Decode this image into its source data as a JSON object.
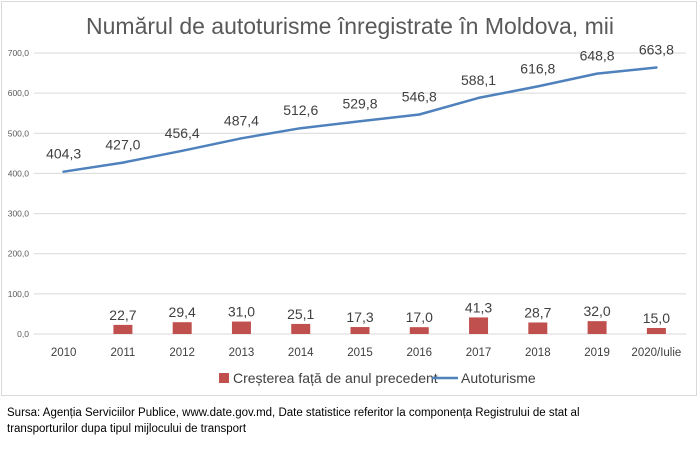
{
  "chart_data": {
    "type": "bar+line",
    "title": "Numărul de autoturisme înregistrate în Moldova, mii",
    "categories": [
      "2010",
      "2011",
      "2012",
      "2013",
      "2014",
      "2015",
      "2016",
      "2017",
      "2018",
      "2019",
      "2020/Iulie"
    ],
    "series": [
      {
        "name": "Creșterea față de anul precedent",
        "kind": "bar",
        "color": "#c0504d",
        "values": [
          null,
          22.7,
          29.4,
          31.0,
          25.1,
          17.3,
          17.0,
          41.3,
          28.7,
          32.0,
          15.0
        ],
        "labels": [
          "",
          "22,7",
          "29,4",
          "31,0",
          "25,1",
          "17,3",
          "17,0",
          "41,3",
          "28,7",
          "32,0",
          "15,0"
        ]
      },
      {
        "name": "Autoturisme",
        "kind": "line",
        "color": "#4f81bd",
        "values": [
          404.3,
          427.0,
          456.4,
          487.4,
          512.6,
          529.8,
          546.8,
          588.1,
          616.8,
          648.8,
          663.8
        ],
        "labels": [
          "404,3",
          "427,0",
          "456,4",
          "487,4",
          "512,6",
          "529,8",
          "546,8",
          "588,1",
          "616,8",
          "648,8",
          "663,8"
        ]
      }
    ],
    "ylim": [
      0,
      700
    ],
    "yticks": [
      0,
      100,
      200,
      300,
      400,
      500,
      600,
      700
    ],
    "ytick_labels": [
      "0,0",
      "100,0",
      "200,0",
      "300,0",
      "400,0",
      "500,0",
      "600,0",
      "700,0"
    ],
    "grid": true,
    "legend": "bottom"
  },
  "source": {
    "line1": "Sursa: Agenția Serviciilor Publice, www.date.gov.md,  Date statistice referitor la componența Registrului de stat al",
    "line2": "transporturilor dupa tipul mijlocului de transport"
  }
}
